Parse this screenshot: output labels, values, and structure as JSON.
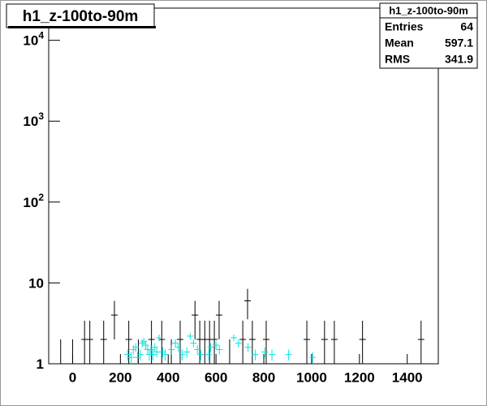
{
  "chart_data": {
    "type": "errorbar",
    "title": "h1_z-100to-90m",
    "log_y": true,
    "xlim": [
      -100,
      1530
    ],
    "xticks": [
      0,
      200,
      400,
      600,
      800,
      1000,
      1200,
      1400
    ],
    "ylim": [
      1,
      25000
    ],
    "yticks": [
      1,
      10,
      {
        "value": 100,
        "label": "10",
        "sup": "2"
      },
      {
        "value": 1000,
        "label": "10",
        "sup": "3"
      },
      {
        "value": 10000,
        "label": "10",
        "sup": "4"
      }
    ],
    "stats": {
      "name": "h1_z-100to-90m",
      "rows": [
        [
          "Entries",
          64
        ],
        [
          "Mean",
          597.1
        ],
        [
          "RMS",
          341.9
        ]
      ]
    },
    "series": [
      {
        "color": "#000000",
        "x": [
          -50,
          0,
          50,
          72,
          130,
          175,
          235,
          275,
          330,
          373,
          413,
          450,
          512,
          532,
          553,
          573,
          593,
          613,
          657,
          712,
          732,
          752,
          810,
          980,
          1054,
          1095,
          1213,
          1458
        ],
        "values": [
          1,
          1,
          2,
          2,
          2,
          4,
          2,
          1,
          2,
          2,
          1,
          2,
          4,
          2,
          2,
          2,
          2,
          4,
          1,
          2,
          6,
          2,
          2,
          2,
          2,
          2,
          2,
          2
        ],
        "errors": [
          1,
          1,
          1.41,
          1.41,
          1.41,
          2,
          1.41,
          1,
          1.41,
          1.41,
          1,
          1.41,
          2,
          1.41,
          1.41,
          1.41,
          1.41,
          2,
          1,
          1.41,
          2.45,
          1.41,
          1.41,
          1.41,
          1.41,
          1.41,
          1.41,
          1.41
        ]
      },
      {
        "color": "#00e5e5",
        "x": [
          230,
          245,
          254,
          264,
          272,
          283,
          291,
          298,
          306,
          314,
          321,
          328,
          336,
          344,
          352,
          362,
          377,
          387,
          414,
          430,
          442,
          458,
          478,
          492,
          506,
          522,
          536,
          570,
          578,
          600,
          614,
          674,
          694,
          734,
          764,
          804,
          834,
          904,
          1004
        ],
        "values": [
          1.3,
          1.2,
          1.5,
          1.6,
          1.2,
          1.3,
          1.8,
          1.9,
          1.7,
          1.5,
          1.3,
          1.5,
          1.3,
          1.6,
          1.4,
          2.1,
          1.4,
          1.3,
          1.5,
          1.8,
          1.6,
          1.3,
          1.4,
          2.2,
          1.8,
          1.5,
          1.3,
          1.3,
          1.6,
          1.7,
          1.5,
          2.1,
          1.8,
          1.6,
          1.3,
          1.4,
          1.3,
          1.3,
          1.2
        ],
        "errors": [
          0.2,
          0.2,
          0.2,
          0.2,
          0.2,
          0.2,
          0.2,
          0.2,
          0.2,
          0.2,
          0.2,
          0.2,
          0.2,
          0.2,
          0.2,
          0.2,
          0.2,
          0.2,
          0.2,
          0.2,
          0.2,
          0.2,
          0.2,
          0.2,
          0.2,
          0.2,
          0.2,
          0.2,
          0.2,
          0.2,
          0.2,
          0.2,
          0.2,
          0.2,
          0.2,
          0.2,
          0.2,
          0.2,
          0.2
        ]
      }
    ]
  }
}
